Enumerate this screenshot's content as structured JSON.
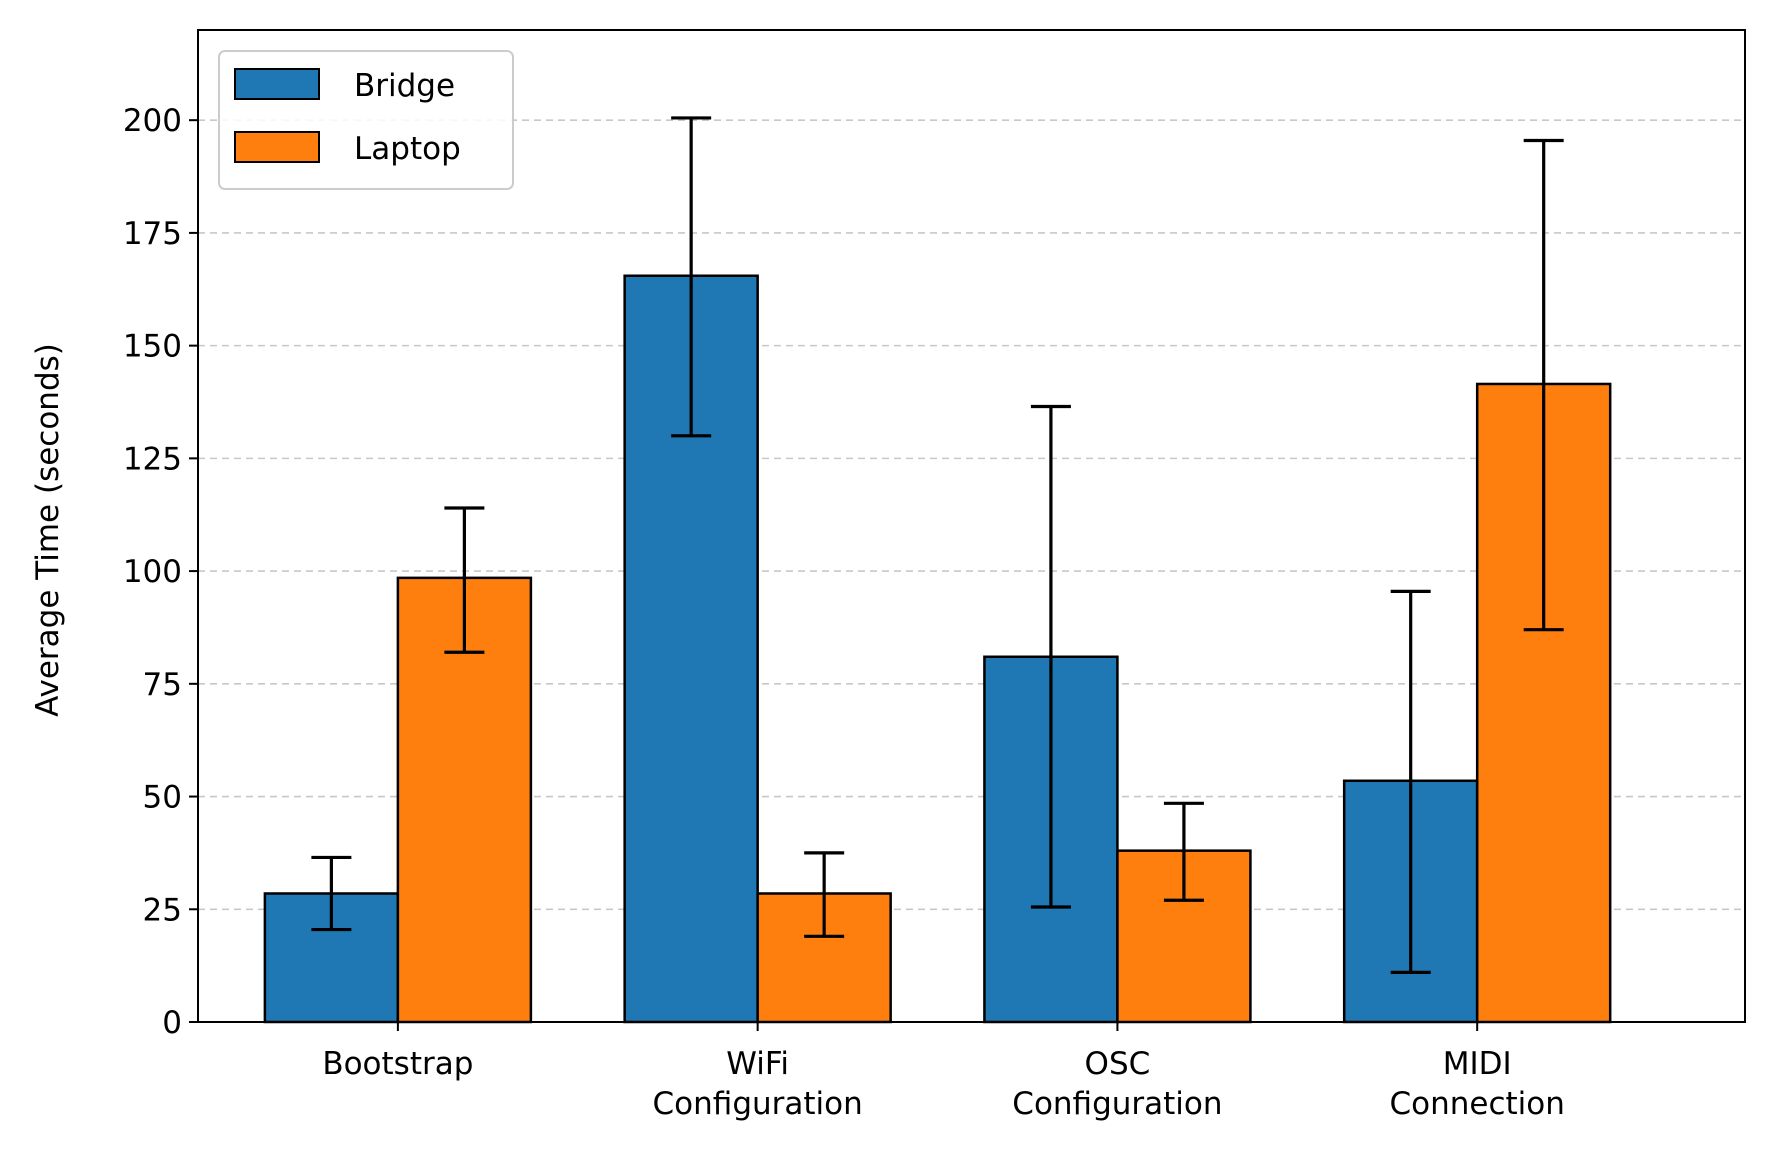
{
  "chart_data": {
    "type": "bar",
    "categories": [
      [
        "Bootstrap"
      ],
      [
        "WiFi",
        "Configuration"
      ],
      [
        "OSC",
        "Configuration"
      ],
      [
        "MIDI",
        "Connection"
      ]
    ],
    "series": [
      {
        "name": "Bridge",
        "color": "#1f77b4",
        "values": [
          28.5,
          165.5,
          81,
          53.5
        ],
        "err_low": [
          20.5,
          130,
          25.5,
          11
        ],
        "err_high": [
          36.5,
          200.5,
          136.5,
          95.5
        ]
      },
      {
        "name": "Laptop",
        "color": "#ff7f0e",
        "values": [
          98.5,
          28.5,
          38,
          141.5
        ],
        "err_low": [
          82,
          19,
          27,
          87
        ],
        "err_high": [
          114,
          37.5,
          48.5,
          195.5
        ]
      }
    ],
    "title": "",
    "xlabel": "",
    "ylabel": "Average Time (seconds)",
    "ylim": [
      0,
      220
    ],
    "yticks": [
      0,
      25,
      50,
      75,
      100,
      125,
      150,
      175,
      200
    ],
    "grid": "y-dashed",
    "legend_position": "top-left",
    "error_bars": true
  }
}
